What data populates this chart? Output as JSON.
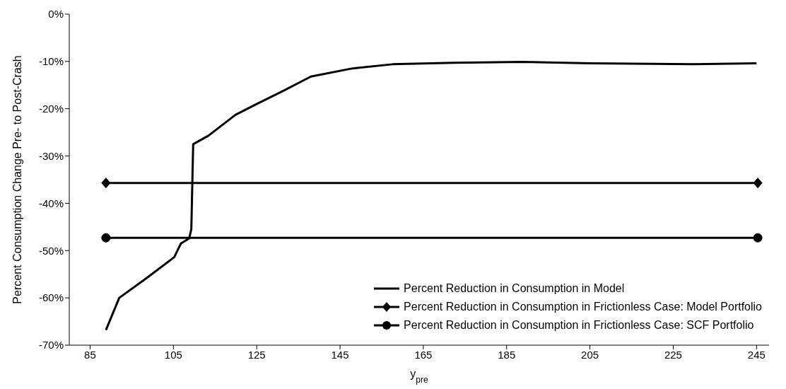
{
  "chart_data": {
    "type": "line",
    "xlabel": "y$_{pre}$",
    "ylabel": "Percent Consumption Change Pre- to Post-Crash",
    "xlim": [
      80,
      248
    ],
    "xticks": [
      85,
      105,
      125,
      145,
      165,
      185,
      205,
      225,
      245
    ],
    "ylim": [
      -70,
      0
    ],
    "yticks": [
      {
        "value": -70,
        "label": "-70%"
      },
      {
        "value": -60,
        "label": "-60%"
      },
      {
        "value": -50,
        "label": "-50%"
      },
      {
        "value": -40,
        "label": "-40%"
      },
      {
        "value": -30,
        "label": "-30%"
      },
      {
        "value": -20,
        "label": "-20%"
      },
      {
        "value": -10,
        "label": "-10%"
      },
      {
        "value": 0,
        "label": "0%"
      }
    ],
    "grid": false,
    "legend": "bottom right",
    "series": [
      {
        "name": "Percent Reduction in Consumption in Model",
        "color": "#000000",
        "marker": "none",
        "x": [
          88.8,
          92,
          98.6,
          105.2,
          106.8,
          108.8,
          109.3,
          109.75,
          113.4,
          119.9,
          124.8,
          131.4,
          138,
          147.8,
          157.6,
          172.4,
          188.8,
          205,
          229.8,
          245
        ],
        "values": [
          -66.8,
          -60,
          -55.8,
          -51.4,
          -48.5,
          -47.4,
          -45.5,
          -27.5,
          -25.7,
          -21.3,
          -19.1,
          -16.2,
          -13.2,
          -11.5,
          -10.6,
          -10.3,
          -10.1,
          -10.4,
          -10.6,
          -10.4
        ]
      },
      {
        "name": "Percent Reduction in Consumption in Frictionless Case: Model Portfolio",
        "color": "#000000",
        "marker": "diamond",
        "x": [
          88.8,
          245.3
        ],
        "values": [
          -35.7,
          -35.7
        ]
      },
      {
        "name": "Percent Reduction in Consumption in Frictionless Case: SCF Portfolio",
        "color": "#000000",
        "marker": "circle",
        "x": [
          88.8,
          245.3
        ],
        "values": [
          -47.3,
          -47.3
        ]
      }
    ]
  }
}
